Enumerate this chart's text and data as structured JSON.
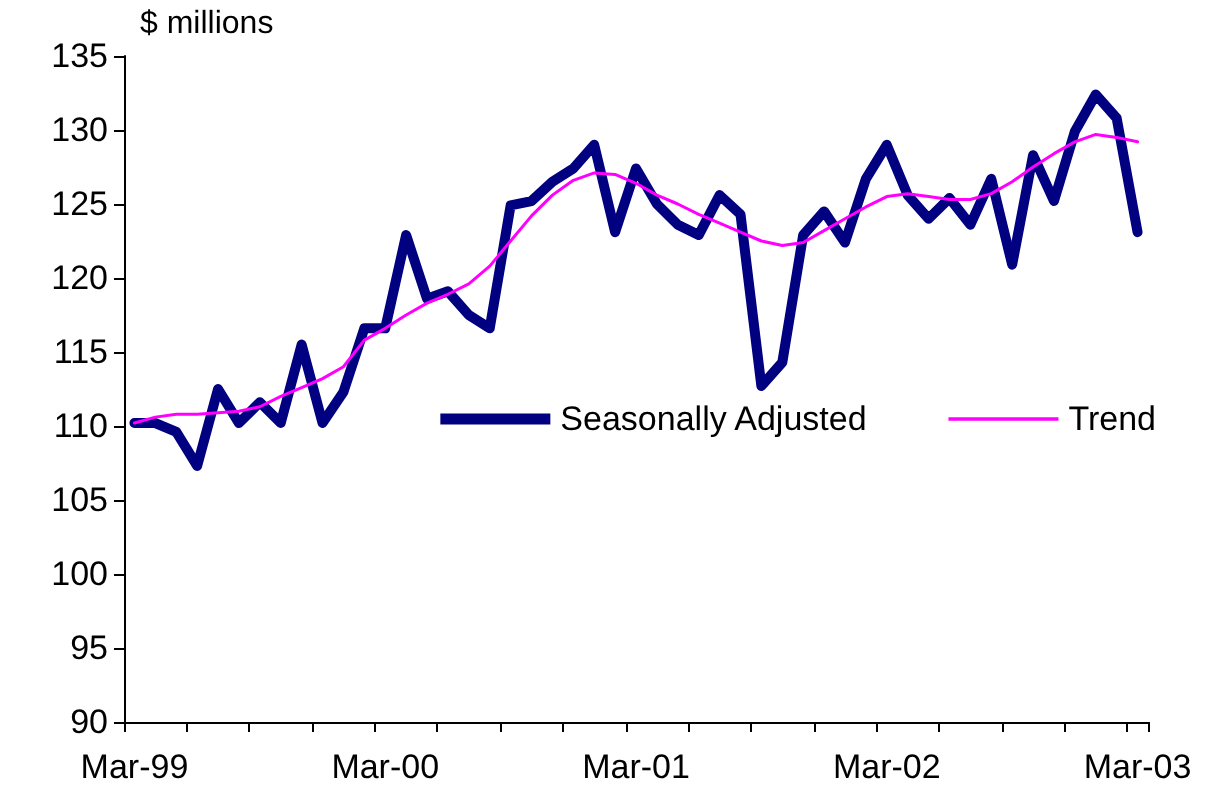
{
  "chart_data": {
    "type": "line",
    "ylabel": "$ millions",
    "categories": [
      "Mar-99",
      null,
      null,
      null,
      null,
      null,
      null,
      null,
      null,
      null,
      null,
      null,
      "Mar-00",
      null,
      null,
      null,
      null,
      null,
      null,
      null,
      null,
      null,
      null,
      null,
      "Mar-01",
      null,
      null,
      null,
      null,
      null,
      null,
      null,
      null,
      null,
      null,
      null,
      "Mar-02",
      null,
      null,
      null,
      null,
      null,
      null,
      null,
      null,
      null,
      null,
      null,
      "Mar-03"
    ],
    "series": [
      {
        "name": "Seasonally Adjusted",
        "color": "#000080",
        "values": [
          110.2,
          110.2,
          109.6,
          107.3,
          112.5,
          110.2,
          111.6,
          110.2,
          115.5,
          110.2,
          112.3,
          116.6,
          116.6,
          122.9,
          118.6,
          119.1,
          117.5,
          116.6,
          124.9,
          125.2,
          126.5,
          127.4,
          129.0,
          123.1,
          127.4,
          125.0,
          123.6,
          122.9,
          125.6,
          124.3,
          112.7,
          114.3,
          122.9,
          124.5,
          122.4,
          126.7,
          129.0,
          125.6,
          124.0,
          125.4,
          123.6,
          126.7,
          120.9,
          128.3,
          125.2,
          129.9,
          132.4,
          130.8,
          123.1
        ]
      },
      {
        "name": "Trend",
        "color": "#ff00ff",
        "values": [
          110.2,
          110.6,
          110.8,
          110.8,
          110.9,
          111.0,
          111.3,
          112.0,
          112.6,
          113.2,
          114.0,
          115.8,
          116.6,
          117.5,
          118.3,
          118.9,
          119.6,
          120.8,
          122.5,
          124.2,
          125.6,
          126.6,
          127.1,
          127.0,
          126.4,
          125.6,
          125.0,
          124.3,
          123.7,
          123.1,
          122.5,
          122.2,
          122.4,
          123.2,
          124.0,
          124.8,
          125.5,
          125.7,
          125.5,
          125.3,
          125.3,
          125.7,
          126.5,
          127.5,
          128.4,
          129.2,
          129.7,
          129.5,
          129.2
        ]
      }
    ],
    "ylim": [
      90,
      135
    ],
    "yticks": [
      90,
      95,
      100,
      105,
      110,
      115,
      120,
      125,
      130,
      135
    ],
    "grid": false,
    "legend": "right",
    "marker": "none",
    "line_style": "solid"
  }
}
